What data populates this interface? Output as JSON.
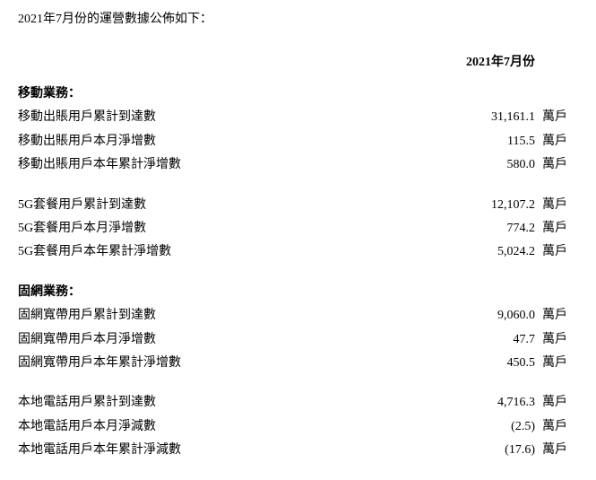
{
  "intro": "2021年7月份的運營數據公佈如下：",
  "column_header": "2021年7月份",
  "sections": {
    "mobile": {
      "title": "移動業務：",
      "rows": [
        {
          "label": "移動出賬用戶累計到達數",
          "value": "31,161.1",
          "unit": "萬戶"
        },
        {
          "label": "移動出賬用戶本月淨增數",
          "value": "115.5",
          "unit": "萬戶"
        },
        {
          "label": "移動出賬用戶本年累計淨增數",
          "value": "580.0",
          "unit": "萬戶"
        }
      ]
    },
    "fiveg": {
      "rows": [
        {
          "label": "5G套餐用戶累計到達數",
          "value": "12,107.2",
          "unit": "萬戶"
        },
        {
          "label": "5G套餐用戶本月淨增數",
          "value": "774.2",
          "unit": "萬戶"
        },
        {
          "label": "5G套餐用戶本年累計淨增數",
          "value": "5,024.2",
          "unit": "萬戶"
        }
      ]
    },
    "fixed": {
      "title": "固網業務：",
      "rows": [
        {
          "label": "固網寬帶用戶累計到達數",
          "value": "9,060.0",
          "unit": "萬戶"
        },
        {
          "label": "固網寬帶用戶本月淨增數",
          "value": "47.7",
          "unit": "萬戶"
        },
        {
          "label": "固網寬帶用戶本年累計淨增數",
          "value": "450.5",
          "unit": "萬戶"
        }
      ]
    },
    "local": {
      "rows": [
        {
          "label": "本地電話用戶累計到達數",
          "value": "4,716.3",
          "unit": "萬戶"
        },
        {
          "label": "本地電話用戶本月淨減數",
          "value": "(2.5)",
          "unit": "萬戶"
        },
        {
          "label": "本地電話用戶本年累計淨減數",
          "value": "(17.6)",
          "unit": "萬戶"
        }
      ]
    }
  }
}
